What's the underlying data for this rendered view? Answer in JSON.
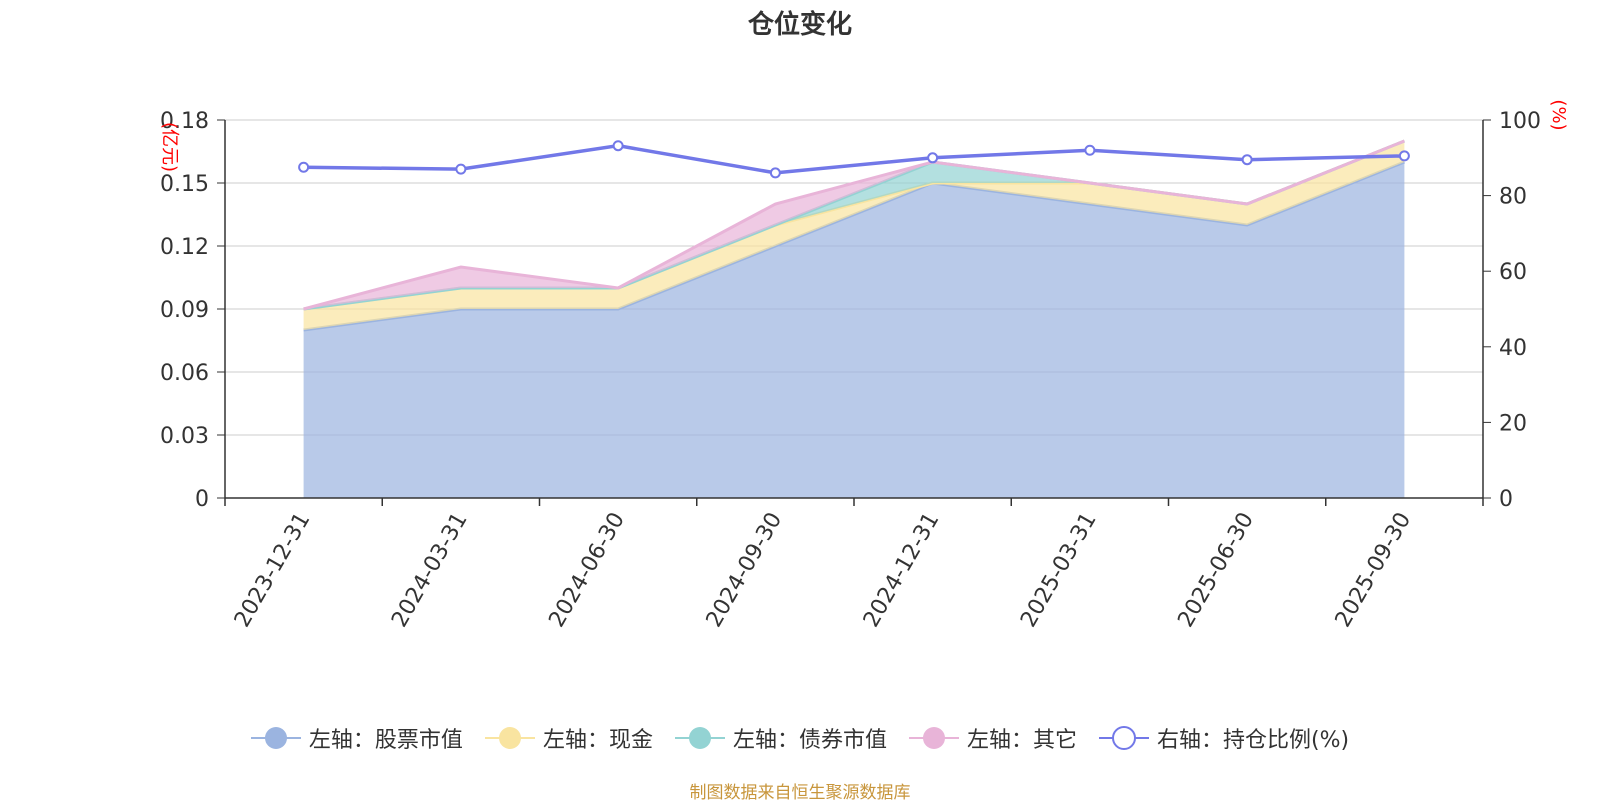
{
  "chart_data": {
    "type": "area",
    "title": "仓位变化",
    "categories": [
      "2023-12-31",
      "2024-03-31",
      "2024-06-30",
      "2024-09-30",
      "2024-12-31",
      "2025-03-31",
      "2025-06-30",
      "2025-09-30"
    ],
    "y_left_label": "(亿元)",
    "y_right_label": "(%)",
    "y_left_range": [
      0,
      0.18
    ],
    "y_left_ticks": [
      "0",
      "0.03",
      "0.06",
      "0.09",
      "0.12",
      "0.15",
      "0.18"
    ],
    "y_right_range": [
      0,
      100
    ],
    "y_right_ticks": [
      "0",
      "20",
      "40",
      "60",
      "80",
      "100"
    ],
    "stacked_series": [
      {
        "name": "左轴：股票市值",
        "color": "#9bb4e0",
        "values": [
          0.08,
          0.09,
          0.09,
          0.12,
          0.15,
          0.14,
          0.13,
          0.16
        ]
      },
      {
        "name": "左轴：现金",
        "color": "#f9e4a0",
        "values": [
          0.01,
          0.01,
          0.01,
          0.01,
          0.0,
          0.01,
          0.01,
          0.01
        ]
      },
      {
        "name": "左轴：债券市值",
        "color": "#93d3d3",
        "values": [
          0,
          0,
          0,
          0,
          0.01,
          0,
          0,
          0
        ]
      },
      {
        "name": "左轴：其它",
        "color": "#e8b4d8",
        "values": [
          0.0,
          0.01,
          0.0,
          0.01,
          0.0,
          0.0,
          0.0,
          0.0
        ]
      }
    ],
    "line_series": {
      "name": "右轴：持仓比例(%)",
      "color": "#7278e8",
      "values": [
        87.5,
        87.0,
        93.2,
        86.0,
        90.0,
        92.0,
        89.5,
        90.5
      ]
    },
    "grid": true,
    "legend_position": "bottom"
  },
  "source_text": "制图数据来自恒生聚源数据库"
}
